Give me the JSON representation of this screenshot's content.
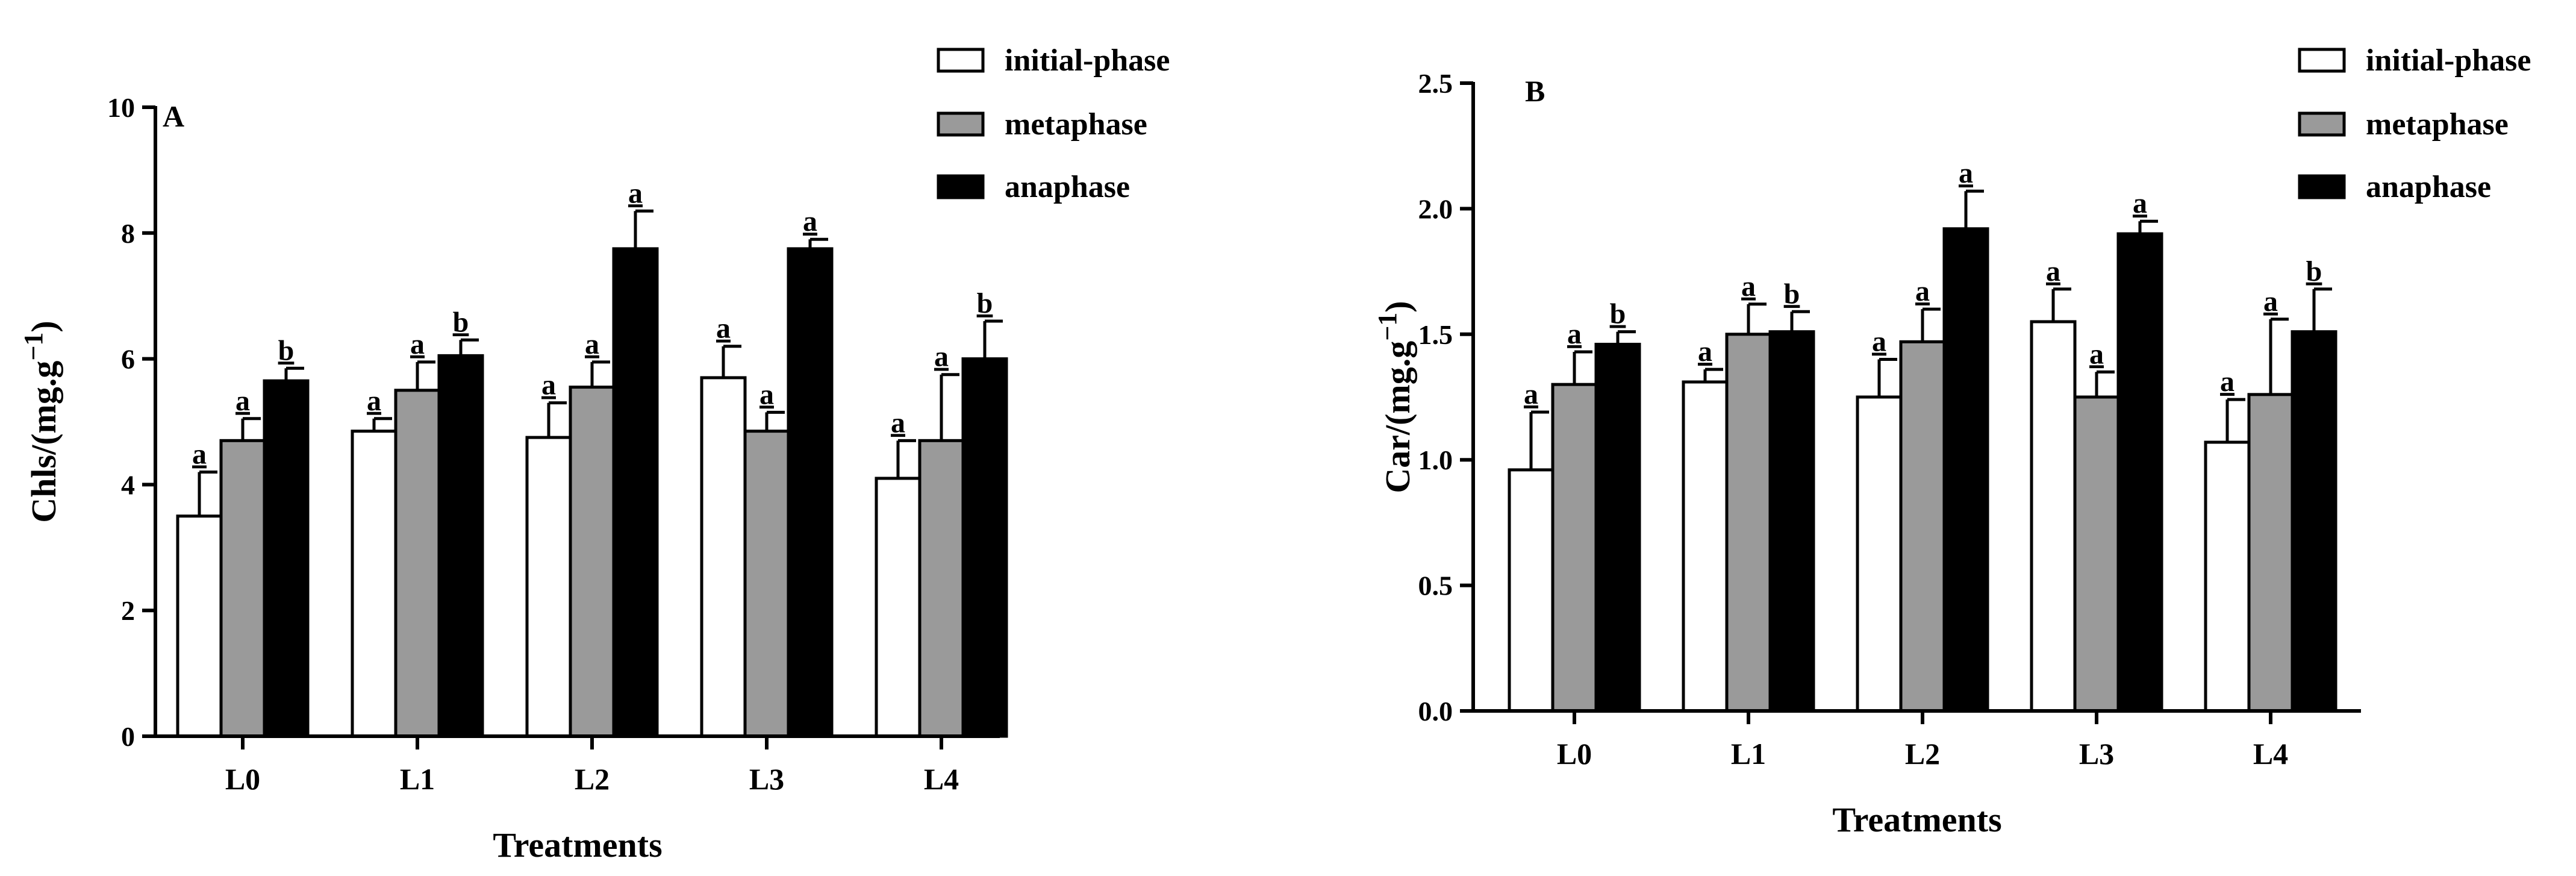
{
  "chart_data": [
    {
      "panel": "A",
      "type": "bar",
      "xlabel": "Treatments",
      "ylabel": "Chls/(mg.g",
      "ylabel_superscript": "−1",
      "ylabel_suffix": ")",
      "ylim": [
        0,
        10
      ],
      "yticks": [
        0,
        2,
        4,
        6,
        8,
        10
      ],
      "ytick_labels": [
        "0",
        "2",
        "4",
        "6",
        "8",
        "10"
      ],
      "categories": [
        "L0",
        "L1",
        "L2",
        "L3",
        "L4"
      ],
      "legend": [
        "initial-phase",
        "metaphase",
        "anaphase"
      ],
      "legend_position": "top-right",
      "series": [
        {
          "name": "initial-phase",
          "color": "#ffffff",
          "values": [
            3.5,
            4.85,
            4.75,
            5.7,
            4.1
          ],
          "errors": [
            0.7,
            0.2,
            0.55,
            0.5,
            0.6
          ],
          "labels": [
            "a",
            "a",
            "a",
            "a",
            "a"
          ]
        },
        {
          "name": "metaphase",
          "color": "#9a9a9a",
          "values": [
            4.7,
            5.5,
            5.55,
            4.85,
            4.7
          ],
          "errors": [
            0.35,
            0.45,
            0.4,
            0.3,
            1.05
          ],
          "labels": [
            "a",
            "a",
            "a",
            "a",
            "a"
          ]
        },
        {
          "name": "anaphase",
          "color": "#000000",
          "values": [
            5.65,
            6.05,
            7.75,
            7.75,
            6.0
          ],
          "errors": [
            0.2,
            0.25,
            0.6,
            0.15,
            0.6
          ],
          "labels": [
            "b",
            "b",
            "a",
            "a",
            "b"
          ]
        }
      ]
    },
    {
      "panel": "B",
      "type": "bar",
      "xlabel": "Treatments",
      "ylabel": "Car/(mg.g",
      "ylabel_superscript": "−1",
      "ylabel_suffix": ")",
      "ylim": [
        0,
        2.5
      ],
      "yticks": [
        0,
        0.5,
        1.0,
        1.5,
        2.0,
        2.5
      ],
      "ytick_labels": [
        "0.0",
        "0.5",
        "1.0",
        "1.5",
        "2.0",
        "2.5"
      ],
      "categories": [
        "L0",
        "L1",
        "L2",
        "L3",
        "L4"
      ],
      "legend": [
        "initial-phase",
        "metaphase",
        "anaphase"
      ],
      "legend_position": "top-right",
      "series": [
        {
          "name": "initial-phase",
          "color": "#ffffff",
          "values": [
            0.96,
            1.31,
            1.25,
            1.55,
            1.07
          ],
          "errors": [
            0.23,
            0.05,
            0.15,
            0.13,
            0.17
          ],
          "labels": [
            "a",
            "a",
            "a",
            "a",
            "a"
          ]
        },
        {
          "name": "metaphase",
          "color": "#9a9a9a",
          "values": [
            1.3,
            1.5,
            1.47,
            1.25,
            1.26
          ],
          "errors": [
            0.13,
            0.12,
            0.13,
            0.1,
            0.3
          ],
          "labels": [
            "a",
            "a",
            "a",
            "a",
            "a"
          ]
        },
        {
          "name": "anaphase",
          "color": "#000000",
          "values": [
            1.46,
            1.51,
            1.92,
            1.9,
            1.51
          ],
          "errors": [
            0.05,
            0.08,
            0.15,
            0.05,
            0.17
          ],
          "labels": [
            "b",
            "b",
            "a",
            "a",
            "b"
          ]
        }
      ]
    }
  ]
}
